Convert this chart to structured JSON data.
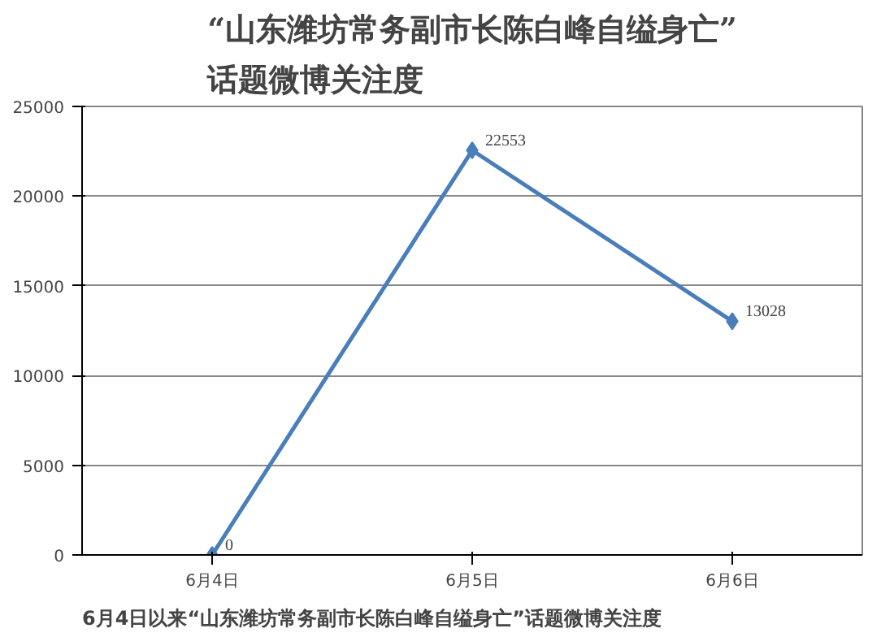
{
  "chart_data": {
    "type": "line",
    "title": "“山东潍坊常务副市长陈白峰自缢身亡”\n话题微博关注度",
    "categories": [
      "6月4日",
      "6月5日",
      "6月6日"
    ],
    "series": [
      {
        "color": "#4a7ebb",
        "values": [
          0,
          22553,
          13028
        ]
      }
    ],
    "ylim": [
      0,
      25000
    ],
    "yticks": [
      0,
      5000,
      10000,
      15000,
      20000,
      25000
    ],
    "grid": "y",
    "marker": "diamond",
    "line_style": "solid",
    "data_labels": true,
    "annotations": [
      "6月4日以来“山东潍坊常务副市长陈白峰自缢身亡”话题微博关注度"
    ]
  }
}
